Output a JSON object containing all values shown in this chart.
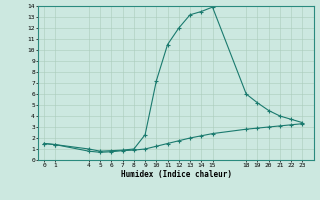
{
  "title": "",
  "xlabel": "Humidex (Indice chaleur)",
  "ylabel": "",
  "bg_color": "#cce8e0",
  "line_color": "#1a7a6e",
  "grid_color": "#aaccC4",
  "upper_x": [
    0,
    1,
    4,
    5,
    6,
    7,
    8,
    9,
    10,
    11,
    12,
    13,
    14,
    15,
    18,
    19,
    20,
    21,
    22,
    23
  ],
  "upper_y": [
    1.5,
    1.4,
    1.0,
    0.8,
    0.85,
    0.9,
    1.0,
    2.3,
    7.2,
    10.5,
    12.0,
    13.2,
    13.5,
    13.9,
    6.0,
    5.2,
    4.5,
    4.0,
    3.7,
    3.4
  ],
  "lower_x": [
    0,
    1,
    4,
    5,
    6,
    7,
    8,
    9,
    10,
    11,
    12,
    13,
    14,
    15,
    18,
    19,
    20,
    21,
    22,
    23
  ],
  "lower_y": [
    1.5,
    1.4,
    0.8,
    0.7,
    0.75,
    0.85,
    0.9,
    1.0,
    1.25,
    1.5,
    1.75,
    2.0,
    2.2,
    2.4,
    2.8,
    2.9,
    3.0,
    3.1,
    3.2,
    3.3
  ],
  "xlim": [
    -0.5,
    24.0
  ],
  "ylim": [
    0,
    14
  ],
  "xticks": [
    0,
    1,
    4,
    5,
    6,
    7,
    8,
    9,
    10,
    11,
    12,
    13,
    14,
    15,
    18,
    19,
    20,
    21,
    22,
    23
  ],
  "yticks": [
    0,
    1,
    2,
    3,
    4,
    5,
    6,
    7,
    8,
    9,
    10,
    11,
    12,
    13,
    14
  ],
  "marker": "+"
}
